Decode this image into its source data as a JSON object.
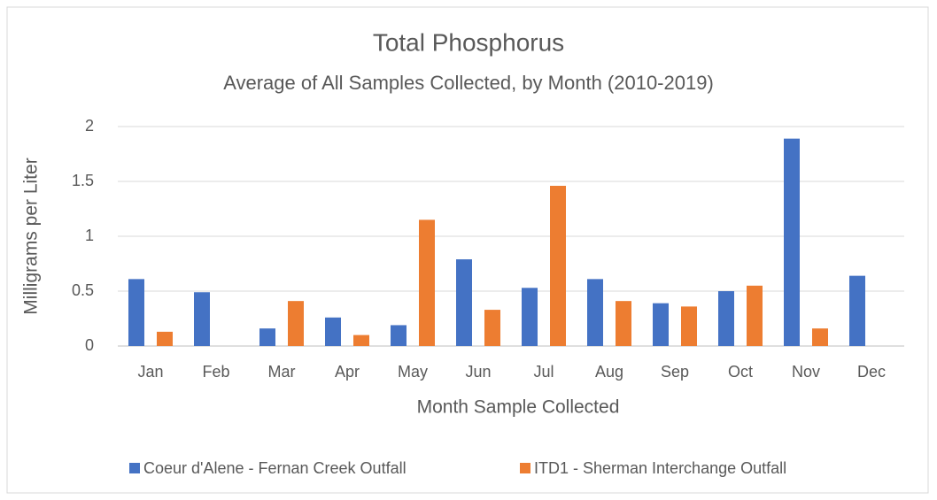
{
  "chart_data": {
    "type": "bar",
    "title": "Total Phosphorus",
    "subtitle": "Average of All Samples Collected, by Month (2010-2019)",
    "x_label": "Month Sample Collected",
    "y_label": "Milligrams per Liter",
    "categories": [
      "Jan",
      "Feb",
      "Mar",
      "Apr",
      "May",
      "Jun",
      "Jul",
      "Aug",
      "Sep",
      "Oct",
      "Nov",
      "Dec"
    ],
    "series": [
      {
        "name": "Coeur d'Alene - Fernan Creek Outfall",
        "color": "#4472c4",
        "values": [
          0.61,
          0.49,
          0.16,
          0.26,
          0.19,
          0.79,
          0.53,
          0.61,
          0.39,
          0.5,
          1.89,
          0.64
        ]
      },
      {
        "name": "ITD1 - Sherman Interchange Outfall",
        "color": "#ed7d31",
        "values": [
          0.13,
          null,
          0.41,
          0.1,
          1.15,
          0.33,
          1.46,
          0.41,
          0.36,
          0.55,
          0.16,
          null
        ]
      }
    ],
    "ylim": [
      0,
      2
    ],
    "yticks": [
      0,
      0.5,
      1,
      1.5,
      2
    ],
    "grid": true,
    "legend": "bottom"
  }
}
